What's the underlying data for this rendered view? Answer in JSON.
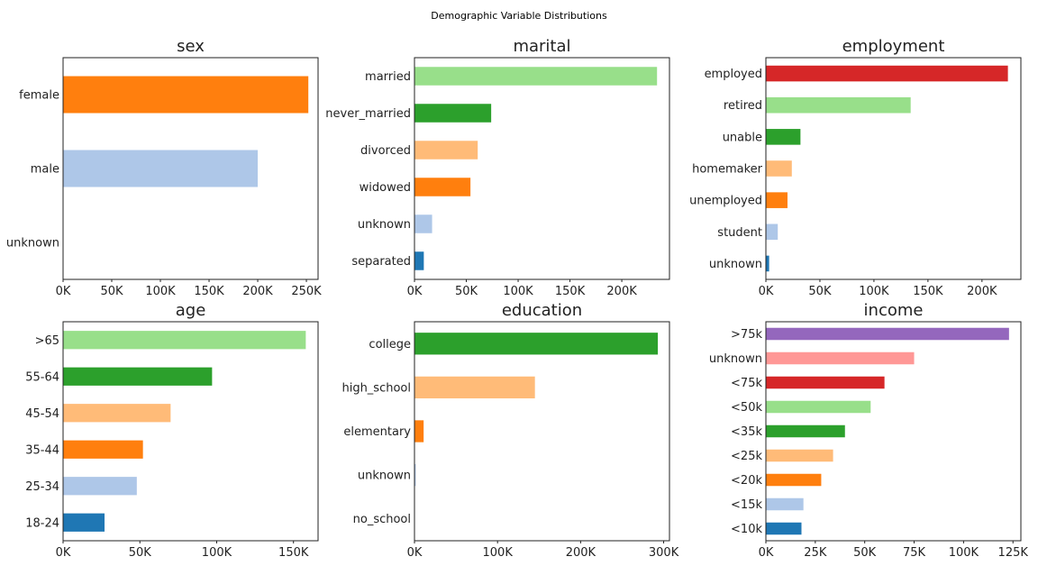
{
  "figure_title": "Demographic Variable Distributions",
  "chart_data": [
    {
      "type": "bar",
      "orientation": "horizontal",
      "title": "sex",
      "categories": [
        "female",
        "male",
        "unknown"
      ],
      "values": [
        252000,
        200000,
        0
      ],
      "colors": [
        "#ff7f0e",
        "#aec7e8",
        "#1f77b4"
      ],
      "xlim": [
        0,
        262000
      ],
      "xticks": [
        0,
        50000,
        100000,
        150000,
        200000,
        250000
      ],
      "xtick_labels": [
        "0K",
        "50K",
        "100K",
        "150K",
        "200K",
        "250K"
      ],
      "grid": false
    },
    {
      "type": "bar",
      "orientation": "horizontal",
      "title": "marital",
      "categories": [
        "married",
        "never_married",
        "divorced",
        "widowed",
        "unknown",
        "separated"
      ],
      "values": [
        234000,
        74000,
        61000,
        54000,
        17000,
        9000
      ],
      "colors": [
        "#98df8a",
        "#2ca02c",
        "#ffbb78",
        "#ff7f0e",
        "#aec7e8",
        "#1f77b4"
      ],
      "xlim": [
        0,
        246000
      ],
      "xticks": [
        0,
        50000,
        100000,
        150000,
        200000
      ],
      "xtick_labels": [
        "0K",
        "50K",
        "100K",
        "150K",
        "200K"
      ],
      "grid": false
    },
    {
      "type": "bar",
      "orientation": "horizontal",
      "title": "employment",
      "categories": [
        "employed",
        "retired",
        "unable",
        "homemaker",
        "unemployed",
        "student",
        "unknown"
      ],
      "values": [
        224000,
        134000,
        32000,
        24000,
        20000,
        11000,
        3000
      ],
      "colors": [
        "#d62728",
        "#98df8a",
        "#2ca02c",
        "#ffbb78",
        "#ff7f0e",
        "#aec7e8",
        "#1f77b4"
      ],
      "xlim": [
        0,
        236000
      ],
      "xticks": [
        0,
        50000,
        100000,
        150000,
        200000
      ],
      "xtick_labels": [
        "0K",
        "50K",
        "100K",
        "150K",
        "200K"
      ],
      "grid": false
    },
    {
      "type": "bar",
      "orientation": "horizontal",
      "title": "age",
      "categories": [
        ">65",
        "55-64",
        "45-54",
        "35-44",
        "25-34",
        "18-24"
      ],
      "values": [
        158000,
        97000,
        70000,
        52000,
        48000,
        27000
      ],
      "colors": [
        "#98df8a",
        "#2ca02c",
        "#ffbb78",
        "#ff7f0e",
        "#aec7e8",
        "#1f77b4"
      ],
      "xlim": [
        0,
        166000
      ],
      "xticks": [
        0,
        50000,
        100000,
        150000
      ],
      "xtick_labels": [
        "0K",
        "50K",
        "100K",
        "150K"
      ],
      "grid": false
    },
    {
      "type": "bar",
      "orientation": "horizontal",
      "title": "education",
      "categories": [
        "college",
        "high_school",
        "elementary",
        "unknown",
        "no_school"
      ],
      "values": [
        293000,
        145000,
        11000,
        1500,
        500
      ],
      "colors": [
        "#2ca02c",
        "#ffbb78",
        "#ff7f0e",
        "#aec7e8",
        "#1f77b4"
      ],
      "xlim": [
        0,
        307000
      ],
      "xticks": [
        0,
        100000,
        200000,
        300000
      ],
      "xtick_labels": [
        "0K",
        "100K",
        "200K",
        "300K"
      ],
      "grid": false
    },
    {
      "type": "bar",
      "orientation": "horizontal",
      "title": "income",
      "categories": [
        ">75k",
        "unknown",
        "<75k",
        "<50k",
        "<35k",
        "<25k",
        "<20k",
        "<15k",
        "<10k"
      ],
      "values": [
        123000,
        75000,
        60000,
        53000,
        40000,
        34000,
        28000,
        19000,
        18000
      ],
      "colors": [
        "#9467bd",
        "#ff9896",
        "#d62728",
        "#98df8a",
        "#2ca02c",
        "#ffbb78",
        "#ff7f0e",
        "#aec7e8",
        "#1f77b4"
      ],
      "xlim": [
        0,
        129000
      ],
      "xticks": [
        0,
        25000,
        50000,
        75000,
        100000,
        125000
      ],
      "xtick_labels": [
        "0K",
        "25K",
        "50K",
        "75K",
        "100K",
        "125K"
      ],
      "grid": false
    }
  ]
}
